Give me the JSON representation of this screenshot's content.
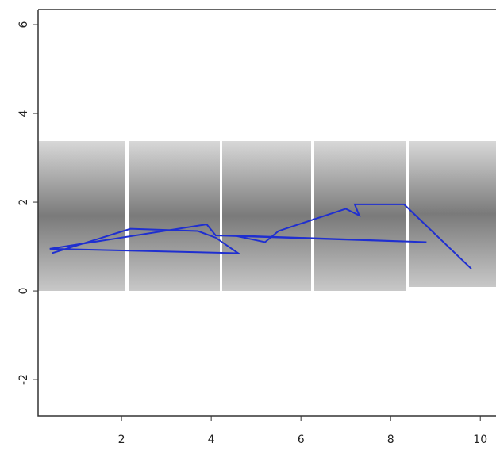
{
  "chart_data": {
    "type": "line",
    "x": [
      0.45,
      2.2,
      3.7,
      4.1,
      4.6,
      0.4,
      3.9,
      4.1,
      8.8,
      4.5,
      5.2,
      5.5,
      7.0,
      7.3,
      7.2,
      8.3,
      9.8
    ],
    "series": [
      {
        "color": "#1f2fd0",
        "values": [
          0.85,
          1.4,
          1.35,
          1.2,
          0.85,
          0.95,
          1.5,
          1.25,
          1.1,
          1.25,
          1.1,
          1.35,
          1.85,
          1.7,
          1.95,
          1.95,
          0.5
        ]
      }
    ],
    "xlim": [
      0.14,
      10.35
    ],
    "ylim": [
      -2.82,
      6.34
    ],
    "xticks": [
      2,
      4,
      6,
      8,
      10
    ],
    "yticks": [
      -2,
      0,
      2,
      4,
      6
    ]
  }
}
